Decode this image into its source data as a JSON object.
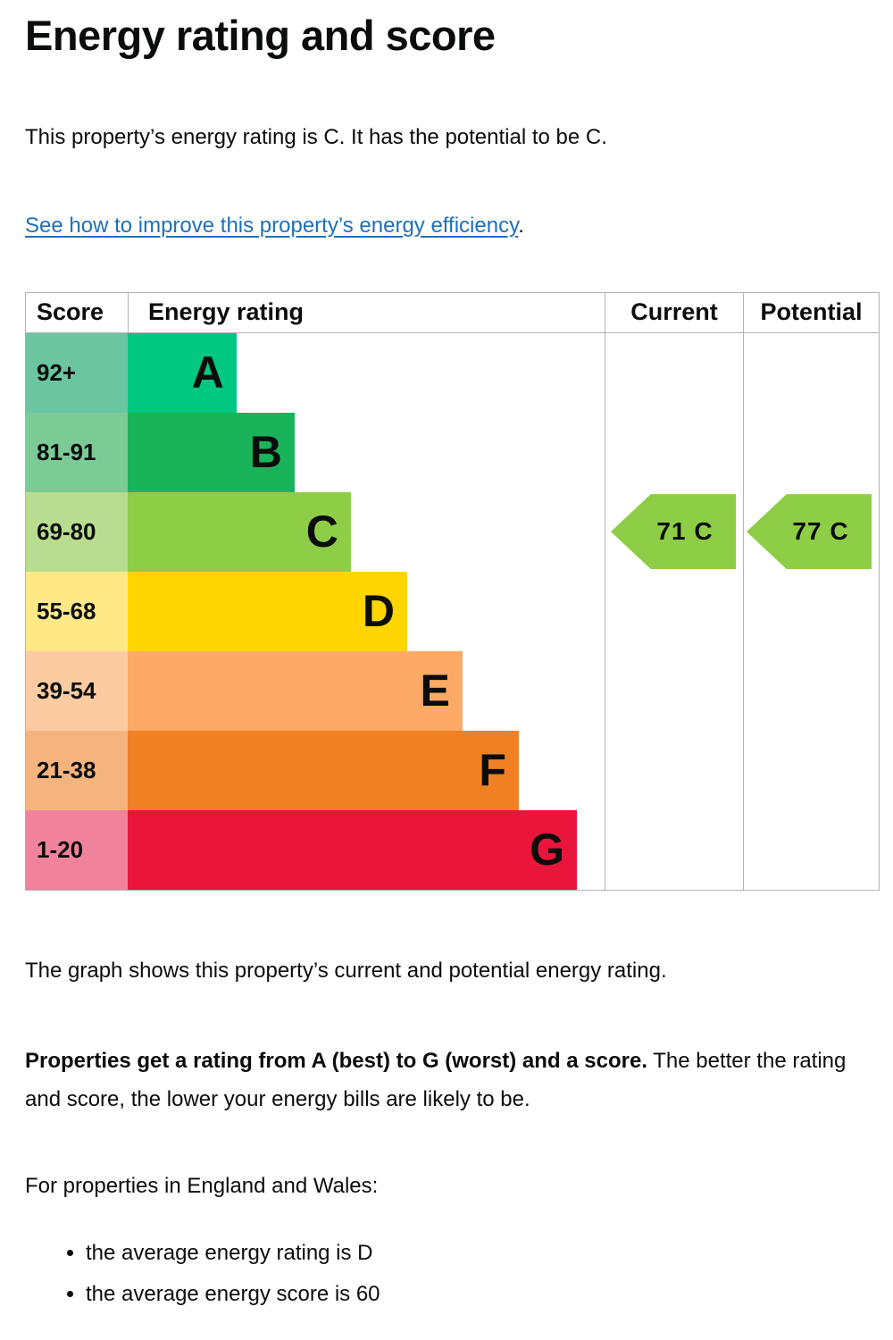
{
  "header": {
    "title": "Energy rating and score"
  },
  "intro": {
    "text": "This property’s energy rating is C. It has the potential to be C."
  },
  "improve_link": {
    "text": "See how to improve this property’s energy efficiency",
    "suffix": ".",
    "color": "#1d70b8"
  },
  "chart_data": {
    "type": "bar",
    "title": "EPC energy rating graph",
    "columns": [
      "Score",
      "Energy rating",
      "Current",
      "Potential"
    ],
    "bands": [
      {
        "score_range": "92+",
        "letter": "A",
        "color": "#00c781",
        "tint": "#6bc5a0",
        "bar_width_pct": 22.8
      },
      {
        "score_range": "81-91",
        "letter": "B",
        "color": "#19b459",
        "tint": "#7cca96",
        "bar_width_pct": 35.0
      },
      {
        "score_range": "69-80",
        "letter": "C",
        "color": "#8dce46",
        "tint": "#b9dd90",
        "bar_width_pct": 46.8
      },
      {
        "score_range": "55-68",
        "letter": "D",
        "color": "#ffd500",
        "tint": "#ffe886",
        "bar_width_pct": 58.6
      },
      {
        "score_range": "39-54",
        "letter": "E",
        "color": "#fcaa65",
        "tint": "#fdcba2",
        "bar_width_pct": 70.2
      },
      {
        "score_range": "21-38",
        "letter": "F",
        "color": "#ef8023",
        "tint": "#f5b37e",
        "bar_width_pct": 82.0
      },
      {
        "score_range": "1-20",
        "letter": "G",
        "color": "#e9153b",
        "tint": "#f1829b",
        "bar_width_pct": 94.2
      }
    ],
    "current": {
      "score": 71,
      "band": "C",
      "label": "71 C",
      "arrow_color": "#8dce46",
      "band_index": 2
    },
    "potential": {
      "score": 77,
      "band": "C",
      "label": "77 C",
      "arrow_color": "#8dce46",
      "band_index": 2
    },
    "border_color": "#b1b4b6"
  },
  "caption": {
    "text": "The graph shows this property’s current and potential energy rating."
  },
  "explanation": {
    "bold": "Properties get a rating from A (best) to G (worst) and a score.",
    "normal": " The better the rating and score, the lower your energy bills are likely to be."
  },
  "regional": {
    "heading": "For properties in England and Wales:",
    "bullets": [
      "the average energy rating is D",
      "the average energy score is 60"
    ]
  }
}
